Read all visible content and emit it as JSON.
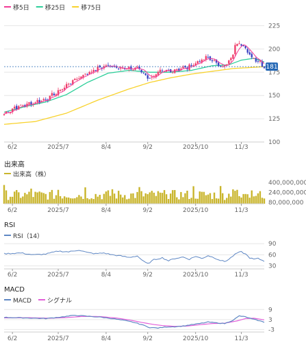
{
  "colors": {
    "up": "#ef3f6b",
    "down": "#3c44c4",
    "ma5": "#f23a96",
    "ma25": "#2ecf9a",
    "ma75": "#f8d22c",
    "volume": "#c9b52c",
    "rsi": "#5e87c4",
    "macd": "#5e87c4",
    "signal": "#e25fd9",
    "grid": "#e6e6e6",
    "axis_text": "#666666",
    "last_price_bg": "#2568b5"
  },
  "x_axis": {
    "labels": [
      {
        "text": "6/2",
        "index": 4
      },
      {
        "text": "2025/7",
        "index": 26
      },
      {
        "text": "8/4",
        "index": 49
      },
      {
        "text": "9/2",
        "index": 69
      },
      {
        "text": "2025/10",
        "index": 92
      },
      {
        "text": "11/3",
        "index": 114
      }
    ]
  },
  "price": {
    "legend": [
      {
        "key": "ma5",
        "label": "移5日"
      },
      {
        "key": "ma25",
        "label": "移25日"
      },
      {
        "key": "ma75",
        "label": "移75日"
      }
    ],
    "y_ticks": [
      225,
      200,
      175,
      150,
      125,
      100
    ],
    "ylim": [
      100,
      232
    ],
    "last_price": 181,
    "last_price_label": "181",
    "anchors": [
      [
        0,
        130
      ],
      [
        5,
        137
      ],
      [
        12,
        141
      ],
      [
        20,
        146
      ],
      [
        26,
        154
      ],
      [
        30,
        161
      ],
      [
        34,
        167
      ],
      [
        38,
        172
      ],
      [
        42,
        176
      ],
      [
        47,
        181
      ],
      [
        51,
        182
      ],
      [
        56,
        180
      ],
      [
        60,
        178
      ],
      [
        64,
        180
      ],
      [
        67,
        174
      ],
      [
        70,
        168
      ],
      [
        73,
        173
      ],
      [
        76,
        176
      ],
      [
        80,
        176
      ],
      [
        84,
        179
      ],
      [
        88,
        180
      ],
      [
        92,
        185
      ],
      [
        95,
        188
      ],
      [
        98,
        191
      ],
      [
        101,
        186
      ],
      [
        104,
        182
      ],
      [
        107,
        183
      ],
      [
        109,
        189
      ],
      [
        111,
        203
      ],
      [
        113,
        208
      ],
      [
        115,
        204
      ],
      [
        117,
        196
      ],
      [
        119,
        191
      ],
      [
        121,
        189
      ],
      [
        123,
        186
      ],
      [
        124,
        183
      ],
      [
        125,
        181
      ]
    ],
    "ma25_anchors": [
      [
        0,
        132
      ],
      [
        10,
        138
      ],
      [
        20,
        143
      ],
      [
        30,
        151
      ],
      [
        40,
        164
      ],
      [
        50,
        174
      ],
      [
        60,
        177
      ],
      [
        70,
        175
      ],
      [
        80,
        175
      ],
      [
        90,
        177
      ],
      [
        100,
        182
      ],
      [
        108,
        183
      ],
      [
        114,
        188
      ],
      [
        120,
        190
      ],
      [
        125,
        186
      ]
    ],
    "ma75_anchors": [
      [
        0,
        119
      ],
      [
        15,
        122
      ],
      [
        30,
        131
      ],
      [
        45,
        145
      ],
      [
        60,
        157
      ],
      [
        70,
        164
      ],
      [
        80,
        169
      ],
      [
        90,
        173
      ],
      [
        100,
        176
      ],
      [
        110,
        179
      ],
      [
        118,
        180
      ],
      [
        125,
        181
      ]
    ]
  },
  "volume": {
    "title": "出来高",
    "legend": "出来高（株）",
    "y_ticks": [
      {
        "value": 400000000,
        "label": "400,000,000"
      },
      {
        "value": 240000000,
        "label": "240,000,000"
      },
      {
        "value": 80000000,
        "label": "80,000,000"
      }
    ],
    "ylim": [
      60000000,
      430000000
    ],
    "base": 120000000,
    "amp": 160000000
  },
  "rsi": {
    "title": "RSI",
    "legend": "RSI（14）",
    "y_ticks": [
      90,
      60,
      30
    ],
    "ylim": [
      22,
      96
    ],
    "anchors": [
      [
        0,
        63
      ],
      [
        8,
        65
      ],
      [
        14,
        60
      ],
      [
        20,
        62
      ],
      [
        26,
        70
      ],
      [
        31,
        68
      ],
      [
        36,
        73
      ],
      [
        40,
        66
      ],
      [
        44,
        63
      ],
      [
        48,
        65
      ],
      [
        52,
        60
      ],
      [
        56,
        57
      ],
      [
        60,
        53
      ],
      [
        64,
        57
      ],
      [
        67,
        42
      ],
      [
        69,
        36
      ],
      [
        72,
        47
      ],
      [
        76,
        52
      ],
      [
        79,
        44
      ],
      [
        82,
        50
      ],
      [
        86,
        54
      ],
      [
        89,
        48
      ],
      [
        92,
        56
      ],
      [
        95,
        50
      ],
      [
        98,
        58
      ],
      [
        101,
        52
      ],
      [
        104,
        45
      ],
      [
        106,
        42
      ],
      [
        108,
        48
      ],
      [
        110,
        57
      ],
      [
        112,
        65
      ],
      [
        114,
        68
      ],
      [
        116,
        62
      ],
      [
        118,
        52
      ],
      [
        120,
        48
      ],
      [
        122,
        50
      ],
      [
        125,
        43
      ]
    ]
  },
  "macd": {
    "title": "MACD",
    "legend": [
      {
        "key": "macd",
        "label": "MACD"
      },
      {
        "key": "signal",
        "label": "シグナル"
      }
    ],
    "y_ticks": [
      9,
      3,
      -3
    ],
    "ylim": [
      -4.5,
      12
    ],
    "anchors": [
      [
        0,
        4.3
      ],
      [
        10,
        4.0
      ],
      [
        20,
        3.6
      ],
      [
        28,
        4.6
      ],
      [
        34,
        5.6
      ],
      [
        40,
        5.0
      ],
      [
        46,
        4.5
      ],
      [
        52,
        3.6
      ],
      [
        58,
        2.4
      ],
      [
        62,
        1.4
      ],
      [
        66,
        0.0
      ],
      [
        70,
        -1.8
      ],
      [
        74,
        -2.1
      ],
      [
        78,
        -1.4
      ],
      [
        82,
        -1.3
      ],
      [
        86,
        -0.9
      ],
      [
        90,
        -0.1
      ],
      [
        94,
        0.6
      ],
      [
        98,
        1.5
      ],
      [
        102,
        1.0
      ],
      [
        106,
        0.6
      ],
      [
        110,
        2.6
      ],
      [
        113,
        5.2
      ],
      [
        116,
        4.6
      ],
      [
        119,
        3.4
      ],
      [
        122,
        2.5
      ],
      [
        125,
        1.4
      ]
    ],
    "signal_anchors": [
      [
        0,
        4.0
      ],
      [
        12,
        4.1
      ],
      [
        22,
        3.8
      ],
      [
        30,
        4.2
      ],
      [
        38,
        4.9
      ],
      [
        46,
        4.8
      ],
      [
        54,
        3.9
      ],
      [
        60,
        2.8
      ],
      [
        66,
        1.3
      ],
      [
        72,
        0.0
      ],
      [
        76,
        -0.6
      ],
      [
        82,
        -1.1
      ],
      [
        88,
        -0.9
      ],
      [
        94,
        -0.1
      ],
      [
        100,
        0.6
      ],
      [
        106,
        0.8
      ],
      [
        112,
        2.2
      ],
      [
        116,
        3.6
      ],
      [
        120,
        3.8
      ],
      [
        125,
        2.8
      ]
    ]
  },
  "chart_data": {
    "type": "line",
    "title": "",
    "points_count": 126,
    "series": [
      {
        "name": "移5日",
        "approx_values": "see price.anchors"
      },
      {
        "name": "移25日",
        "approx_values": "see price.ma25_anchors"
      },
      {
        "name": "移75日",
        "approx_values": "see price.ma75_anchors"
      },
      {
        "name": "出来高（株）",
        "approx_range": [
          80000000,
          400000000
        ]
      },
      {
        "name": "RSI（14）",
        "approx_values": "see rsi.anchors"
      },
      {
        "name": "MACD",
        "approx_values": "see macd.anchors"
      },
      {
        "name": "シグナル",
        "approx_values": "see macd.signal_anchors"
      }
    ],
    "price_axis": [
      100,
      125,
      150,
      175,
      200,
      225
    ],
    "last_price": 181
  }
}
